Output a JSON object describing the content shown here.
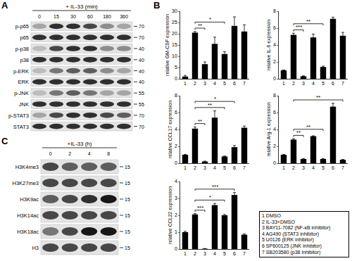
{
  "panel_labels": [
    "A",
    "B",
    "C"
  ],
  "blot_A": {
    "title": "+ IL-33 (min)",
    "lanes": [
      0,
      15,
      30,
      60,
      180,
      360
    ],
    "rows": [
      {
        "label": "p-p65",
        "marker": 70,
        "intensity": [
          0.3,
          0.8,
          0.8,
          0.7,
          0.4,
          0.3
        ]
      },
      {
        "label": "p65",
        "marker": 70,
        "intensity": [
          0.8,
          0.8,
          0.8,
          0.8,
          0.8,
          0.8
        ]
      },
      {
        "label": "p-p38",
        "marker": 40,
        "intensity": [
          0.2,
          0.7,
          0.8,
          0.8,
          0.4,
          0.4
        ]
      },
      {
        "label": "p38",
        "marker": 40,
        "intensity": [
          0.8,
          0.8,
          0.8,
          0.8,
          0.8,
          0.8
        ]
      },
      {
        "label": "p-ERK",
        "marker": 40,
        "intensity": [
          0.2,
          0.5,
          0.6,
          0.6,
          0.4,
          0.3
        ]
      },
      {
        "label": "ERK",
        "marker": 40,
        "intensity": [
          0.8,
          0.8,
          0.8,
          0.8,
          0.8,
          0.8
        ]
      },
      {
        "label": "p-JNK",
        "marker": 55,
        "intensity": [
          0.2,
          0.5,
          0.6,
          0.5,
          0.3,
          0.3
        ]
      },
      {
        "label": "JNK",
        "marker": 55,
        "intensity": [
          0.8,
          0.8,
          0.8,
          0.8,
          0.8,
          0.8
        ]
      },
      {
        "label": "p-STAT3",
        "marker": 70,
        "intensity": [
          0.3,
          0.7,
          0.8,
          0.8,
          0.7,
          0.6
        ]
      },
      {
        "label": "STAT3",
        "marker": 70,
        "intensity": [
          0.8,
          0.8,
          0.8,
          0.8,
          0.8,
          0.8
        ]
      }
    ]
  },
  "chart_data": [
    {
      "type": "bar",
      "y_label": "relative GM-CSF expression",
      "categories": [
        "1",
        "2",
        "3",
        "4",
        "5",
        "6",
        "7"
      ],
      "values": [
        1,
        20.5,
        6.5,
        15.5,
        11,
        23.5,
        21
      ],
      "errors": [
        0.5,
        0.5,
        1,
        3,
        1,
        4,
        3
      ],
      "color": "#000000",
      "ylim": [
        0,
        30
      ],
      "yticks": [
        0,
        5,
        10,
        15,
        20,
        25,
        30
      ],
      "significance": [
        {
          "from": "2",
          "to": "3",
          "label": "**"
        },
        {
          "from": "2",
          "to": "5",
          "label": "*"
        }
      ]
    },
    {
      "type": "bar",
      "y_label": "relative IL-6 expression",
      "categories": [
        "1",
        "2",
        "3",
        "4",
        "5",
        "6",
        "7"
      ],
      "values": [
        1,
        5.2,
        0.3,
        4.9,
        1.4,
        7.1,
        5.1
      ],
      "errors": [
        0.05,
        0.2,
        0.05,
        0.4,
        0.1,
        0.2,
        0.4
      ],
      "color": "#000000",
      "ylim": [
        0,
        8
      ],
      "yticks": [
        0,
        2,
        4,
        6,
        8
      ],
      "significance": [
        {
          "from": "2",
          "to": "3",
          "label": "***"
        },
        {
          "from": "2",
          "to": "5",
          "label": "**"
        }
      ]
    },
    {
      "type": "bar",
      "y_label": "relative CCL17 expression",
      "categories": [
        "1",
        "2",
        "3",
        "4",
        "5",
        "6",
        "7"
      ],
      "values": [
        1,
        4.1,
        0.2,
        5.4,
        0.8,
        1.9,
        4.2
      ],
      "errors": [
        0.05,
        0.2,
        0.05,
        0.8,
        0.05,
        0.2,
        0.2
      ],
      "color": "#000000",
      "ylim": [
        0,
        8
      ],
      "yticks": [
        0,
        2,
        4,
        6,
        8
      ],
      "significance": [
        {
          "from": "2",
          "to": "3",
          "label": "**"
        },
        {
          "from": "2",
          "to": "5",
          "label": "**"
        },
        {
          "from": "2",
          "to": "6",
          "label": "*"
        }
      ]
    },
    {
      "type": "bar",
      "y_label": "relative Arg-1 expression",
      "categories": [
        "1",
        "2",
        "3",
        "4",
        "5",
        "6",
        "7"
      ],
      "values": [
        1,
        2.8,
        0.5,
        3.2,
        0.5,
        6.7,
        0.4
      ],
      "errors": [
        0.05,
        0.1,
        0.05,
        0.05,
        0.05,
        0.4,
        0.05
      ],
      "color": "#000000",
      "ylim": [
        0,
        8
      ],
      "yticks": [
        0,
        2,
        4,
        6,
        8
      ],
      "significance": [
        {
          "from": "2",
          "to": "3",
          "label": "**"
        },
        {
          "from": "2",
          "to": "5",
          "label": "**"
        },
        {
          "from": "2",
          "to": "7",
          "label": "**"
        }
      ]
    },
    {
      "type": "bar",
      "y_label": "relative CCL22 expression",
      "categories": [
        "1",
        "2",
        "3",
        "4",
        "5",
        "6",
        "7"
      ],
      "values": [
        1,
        2.05,
        0.02,
        2.6,
        2.0,
        3.2,
        0.85
      ],
      "errors": [
        0.05,
        0.05,
        0.01,
        0.1,
        0.05,
        0.15,
        0.05
      ],
      "color": "#000000",
      "ylim": [
        0,
        4
      ],
      "yticks": [
        0,
        1,
        2,
        3,
        4
      ],
      "significance": [
        {
          "from": "2",
          "to": "3",
          "label": "***"
        },
        {
          "from": "2",
          "to": "5",
          "label": "*"
        },
        {
          "from": "2",
          "to": "6",
          "label": "***"
        }
      ]
    }
  ],
  "legend_box": [
    "1 DMSO",
    "2 IL-33+DMSO",
    "3 BAY11-7082 (NF-κB inhibitor)",
    "4 AG490 (STAT3 inhibitor)",
    "5 U0126 (ERK inhibitor)",
    "6 SP600125 (JNK inhibitor)",
    "7 SB203580 (p38 inhibitor)"
  ],
  "blot_C": {
    "title": "+IL-33 (h)",
    "lanes": [
      0,
      2,
      4,
      8
    ],
    "rows": [
      {
        "label": "H3K4me3",
        "marker": 15,
        "intensity": [
          0.7,
          0.6,
          0.6,
          0.6
        ]
      },
      {
        "label": "H3K27me3",
        "marker": 15,
        "intensity": [
          0.7,
          0.7,
          0.7,
          0.7
        ]
      },
      {
        "label": "H3K9ac",
        "marker": 15,
        "intensity": [
          0.6,
          0.7,
          0.8,
          0.9
        ]
      },
      {
        "label": "H3K14ac",
        "marker": 15,
        "intensity": [
          0.7,
          0.7,
          0.7,
          0.7
        ]
      },
      {
        "label": "H3K18ac",
        "marker": 15,
        "intensity": [
          0.5,
          0.7,
          0.9,
          0.9
        ]
      },
      {
        "label": "H3",
        "marker": 15,
        "intensity": [
          0.7,
          0.7,
          0.7,
          0.7
        ]
      }
    ]
  }
}
